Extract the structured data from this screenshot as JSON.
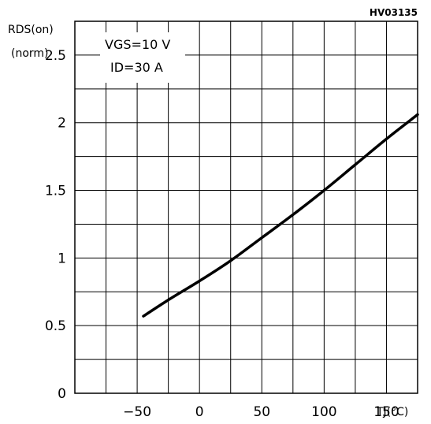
{
  "chart_data": {
    "type": "line",
    "figure_code": "HV03135",
    "ylabel": "RDS(on)",
    "ylabel_unit": "(norm)",
    "xlabel": "TJ(°C)",
    "conditions": [
      "VGS=10 V",
      "ID=30 A"
    ],
    "xlim": [
      -100,
      175
    ],
    "ylim": [
      0,
      2.75
    ],
    "x_tick_values": [
      -50,
      0,
      50,
      100,
      150
    ],
    "x_tick_labels": [
      "−50",
      "0",
      "50",
      "100",
      "150"
    ],
    "y_tick_values": [
      0,
      0.5,
      1,
      1.5,
      2,
      2.5
    ],
    "y_tick_labels": [
      "0",
      "0.5",
      "1",
      "1.5",
      "2",
      "2.5"
    ],
    "grid": true,
    "series": [
      {
        "x": [
          -45,
          -25,
          0,
          25,
          50,
          75,
          100,
          125,
          150,
          175
        ],
        "values": [
          0.57,
          0.69,
          0.83,
          0.98,
          1.15,
          1.32,
          1.5,
          1.69,
          1.88,
          2.06
        ]
      }
    ]
  }
}
